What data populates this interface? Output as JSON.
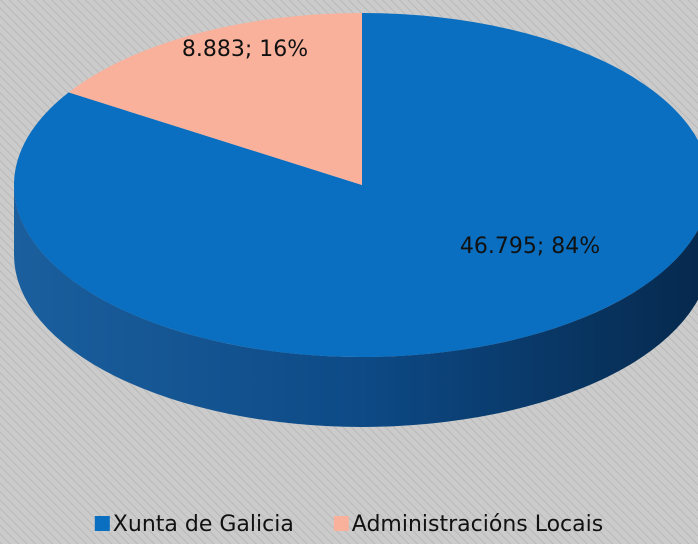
{
  "chart_data": {
    "type": "pie",
    "categories": [
      "Xunta de Galicia",
      "Administracións Locais"
    ],
    "values": [
      46795,
      8883
    ],
    "value_labels": [
      "46.795; 84%",
      "8.883; 16%"
    ],
    "colors": [
      "#0a6fc0",
      "#f9b19b"
    ],
    "legend": "bottom"
  }
}
